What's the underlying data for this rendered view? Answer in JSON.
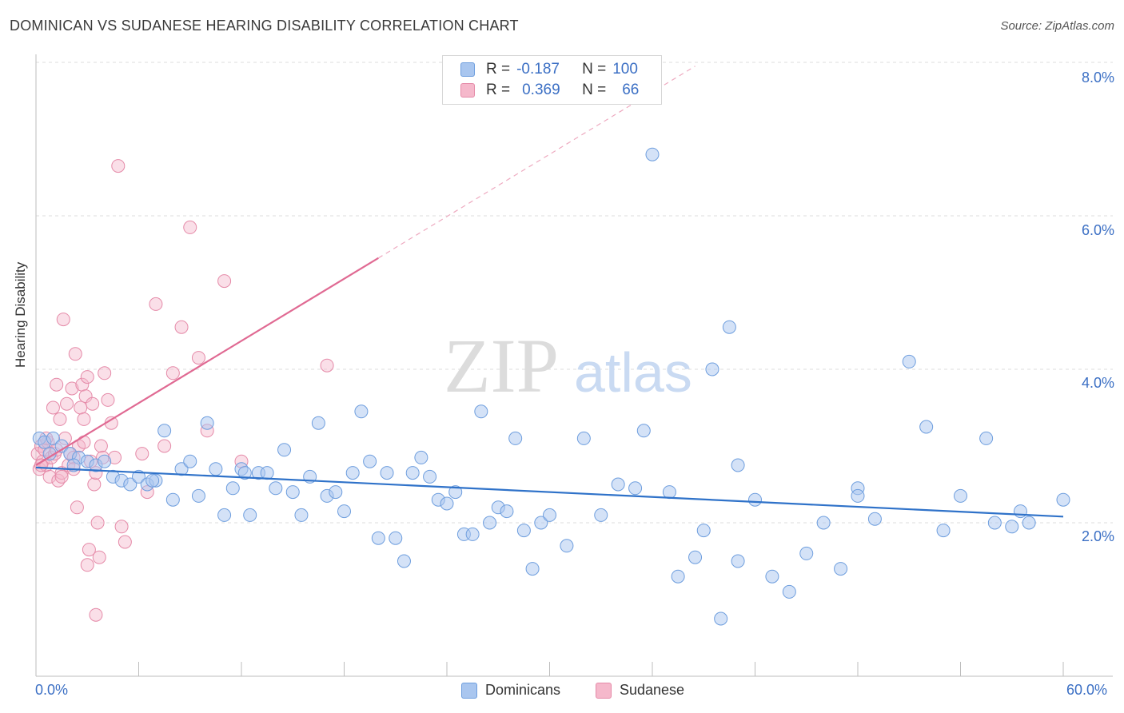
{
  "header": {
    "title": "DOMINICAN VS SUDANESE HEARING DISABILITY CORRELATION CHART",
    "source": "Source: ZipAtlas.com"
  },
  "watermark": {
    "zip": "ZIP",
    "atlas": "atlas"
  },
  "legend": {
    "row1": {
      "r_label": "R =",
      "r_value": "-0.187",
      "n_label": "N =",
      "n_value": "100"
    },
    "row2": {
      "r_label": "R =",
      "r_value": "0.369",
      "n_label": "N =",
      "n_value": "66"
    }
  },
  "bottom_legend": {
    "series1": "Dominicans",
    "series2": "Sudanese"
  },
  "axes": {
    "ylabel": "Hearing Disability",
    "x_min_label": "0.0%",
    "x_max_label": "60.0%",
    "y_ticks": [
      "8.0%",
      "6.0%",
      "4.0%",
      "2.0%"
    ]
  },
  "colors": {
    "blue_fill": "#a9c6ef",
    "blue_stroke": "#6e9ede",
    "blue_line": "#2f72c9",
    "pink_fill": "#f5b8cb",
    "pink_stroke": "#e58aa8",
    "pink_line": "#e06a93",
    "label_blue": "#3b6fc4"
  },
  "chart_data": {
    "type": "scatter",
    "title": "DOMINICAN VS SUDANESE HEARING DISABILITY CORRELATION CHART",
    "xlabel": "",
    "ylabel": "Hearing Disability",
    "xlim": [
      0,
      60
    ],
    "ylim": [
      0,
      8.5
    ],
    "y_ticks": [
      2,
      4,
      6,
      8
    ],
    "grid": true,
    "legend_position": "top-center",
    "series": [
      {
        "name": "Dominicans",
        "r": -0.187,
        "n": 100,
        "trend": {
          "x": [
            0,
            60
          ],
          "y": [
            2.72,
            2.08
          ],
          "style": "solid"
        },
        "points": [
          [
            0.2,
            3.1
          ],
          [
            0.5,
            3.05
          ],
          [
            1.0,
            3.1
          ],
          [
            1.5,
            3.0
          ],
          [
            2.0,
            2.9
          ],
          [
            2.5,
            2.85
          ],
          [
            3.0,
            2.8
          ],
          [
            3.5,
            2.75
          ],
          [
            4.0,
            2.8
          ],
          [
            4.5,
            2.6
          ],
          [
            5.0,
            2.55
          ],
          [
            5.5,
            2.5
          ],
          [
            6.0,
            2.6
          ],
          [
            6.5,
            2.5
          ],
          [
            7.0,
            2.55
          ],
          [
            7.5,
            3.2
          ],
          [
            8.0,
            2.3
          ],
          [
            8.5,
            2.7
          ],
          [
            9.0,
            2.8
          ],
          [
            9.5,
            2.35
          ],
          [
            10.0,
            3.3
          ],
          [
            10.5,
            2.7
          ],
          [
            11.0,
            2.1
          ],
          [
            11.5,
            2.45
          ],
          [
            12.0,
            2.7
          ],
          [
            12.5,
            2.1
          ],
          [
            13.0,
            2.65
          ],
          [
            13.5,
            2.65
          ],
          [
            14.0,
            2.45
          ],
          [
            14.5,
            2.95
          ],
          [
            15.0,
            2.4
          ],
          [
            15.5,
            2.1
          ],
          [
            16.0,
            2.6
          ],
          [
            16.5,
            3.3
          ],
          [
            17.0,
            2.35
          ],
          [
            17.5,
            2.4
          ],
          [
            18.0,
            2.15
          ],
          [
            18.5,
            2.65
          ],
          [
            19.0,
            3.45
          ],
          [
            19.5,
            2.8
          ],
          [
            20.0,
            1.8
          ],
          [
            20.5,
            2.65
          ],
          [
            21.0,
            1.8
          ],
          [
            21.5,
            1.5
          ],
          [
            22.0,
            2.65
          ],
          [
            22.5,
            2.85
          ],
          [
            23.0,
            2.6
          ],
          [
            23.5,
            2.3
          ],
          [
            24.0,
            2.25
          ],
          [
            24.5,
            2.4
          ],
          [
            25.0,
            1.85
          ],
          [
            25.5,
            1.85
          ],
          [
            26.0,
            3.45
          ],
          [
            26.5,
            2.0
          ],
          [
            27.0,
            2.2
          ],
          [
            27.5,
            2.15
          ],
          [
            28.0,
            3.1
          ],
          [
            28.5,
            1.9
          ],
          [
            29.0,
            1.4
          ],
          [
            29.5,
            2.0
          ],
          [
            30.0,
            2.1
          ],
          [
            31.0,
            1.7
          ],
          [
            32.0,
            3.1
          ],
          [
            33.0,
            2.1
          ],
          [
            34.0,
            2.5
          ],
          [
            35.0,
            2.45
          ],
          [
            35.5,
            3.2
          ],
          [
            36.0,
            6.8
          ],
          [
            37.0,
            2.4
          ],
          [
            37.5,
            1.3
          ],
          [
            38.5,
            1.55
          ],
          [
            39.0,
            1.9
          ],
          [
            39.5,
            4.0
          ],
          [
            40.0,
            0.75
          ],
          [
            40.5,
            4.55
          ],
          [
            41.0,
            2.75
          ],
          [
            41.0,
            1.5
          ],
          [
            42.0,
            2.3
          ],
          [
            43.0,
            1.3
          ],
          [
            44.0,
            1.1
          ],
          [
            45.0,
            1.6
          ],
          [
            46.0,
            2.0
          ],
          [
            47.0,
            1.4
          ],
          [
            48.0,
            2.45
          ],
          [
            48.0,
            2.35
          ],
          [
            49.0,
            2.05
          ],
          [
            51.0,
            4.1
          ],
          [
            52.0,
            3.25
          ],
          [
            53.0,
            1.9
          ],
          [
            54.0,
            2.35
          ],
          [
            55.5,
            3.1
          ],
          [
            56.0,
            2.0
          ],
          [
            57.0,
            1.95
          ],
          [
            57.5,
            2.15
          ],
          [
            58.0,
            2.0
          ],
          [
            60.0,
            2.3
          ],
          [
            0.8,
            2.9
          ],
          [
            2.2,
            2.75
          ],
          [
            6.8,
            2.55
          ],
          [
            12.2,
            2.65
          ]
        ]
      },
      {
        "name": "Sudanese",
        "r": 0.369,
        "n": 66,
        "trend": {
          "x": [
            0,
            20
          ],
          "y": [
            2.75,
            5.45
          ],
          "style": "solid",
          "extension": {
            "x": [
              20,
              38.5
            ],
            "y": [
              5.45,
              7.95
            ],
            "style": "dashed"
          }
        },
        "points": [
          [
            0.1,
            2.9
          ],
          [
            0.2,
            2.7
          ],
          [
            0.3,
            3.0
          ],
          [
            0.4,
            2.8
          ],
          [
            0.5,
            2.95
          ],
          [
            0.6,
            2.75
          ],
          [
            0.7,
            3.05
          ],
          [
            0.8,
            2.6
          ],
          [
            0.9,
            2.85
          ],
          [
            1.0,
            3.5
          ],
          [
            1.1,
            2.9
          ],
          [
            1.2,
            3.8
          ],
          [
            1.3,
            2.55
          ],
          [
            1.4,
            3.35
          ],
          [
            1.5,
            2.65
          ],
          [
            1.6,
            4.65
          ],
          [
            1.7,
            3.1
          ],
          [
            1.8,
            3.55
          ],
          [
            1.9,
            2.75
          ],
          [
            2.0,
            2.9
          ],
          [
            2.1,
            3.75
          ],
          [
            2.2,
            2.85
          ],
          [
            2.3,
            4.2
          ],
          [
            2.4,
            2.2
          ],
          [
            2.5,
            3.0
          ],
          [
            2.6,
            3.5
          ],
          [
            2.7,
            3.8
          ],
          [
            2.8,
            3.05
          ],
          [
            2.9,
            3.65
          ],
          [
            3.0,
            3.9
          ],
          [
            3.1,
            1.65
          ],
          [
            3.2,
            2.8
          ],
          [
            3.3,
            3.55
          ],
          [
            3.4,
            2.5
          ],
          [
            3.5,
            2.65
          ],
          [
            3.6,
            2.0
          ],
          [
            3.7,
            1.55
          ],
          [
            3.8,
            3.0
          ],
          [
            3.9,
            2.85
          ],
          [
            4.0,
            3.95
          ],
          [
            4.2,
            3.6
          ],
          [
            4.4,
            3.3
          ],
          [
            4.6,
            2.85
          ],
          [
            4.8,
            6.65
          ],
          [
            5.0,
            1.95
          ],
          [
            5.2,
            1.75
          ],
          [
            6.2,
            2.9
          ],
          [
            6.5,
            2.4
          ],
          [
            7.0,
            4.85
          ],
          [
            7.5,
            3.0
          ],
          [
            8.0,
            3.95
          ],
          [
            8.5,
            4.55
          ],
          [
            9.0,
            5.85
          ],
          [
            9.5,
            4.15
          ],
          [
            10.0,
            3.2
          ],
          [
            11.0,
            5.15
          ],
          [
            12.0,
            2.8
          ],
          [
            17.0,
            4.05
          ],
          [
            3.0,
            1.45
          ],
          [
            3.5,
            0.8
          ],
          [
            1.5,
            2.6
          ],
          [
            0.3,
            2.75
          ],
          [
            0.6,
            3.1
          ],
          [
            1.2,
            2.95
          ],
          [
            2.2,
            2.7
          ],
          [
            2.8,
            3.35
          ]
        ]
      }
    ]
  }
}
